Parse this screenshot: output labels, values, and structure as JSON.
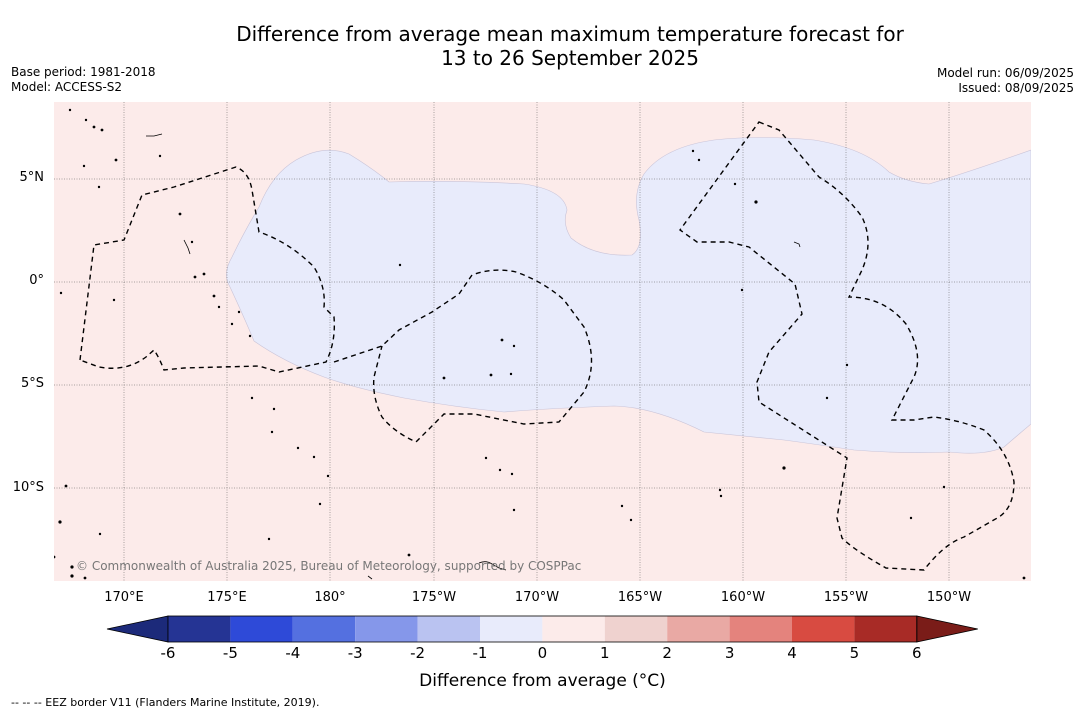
{
  "title_line1": "Difference from average mean maximum temperature forecast for",
  "title_line2": "13 to 26 September 2025",
  "meta_left": {
    "base_period": "Base period: 1981-2018",
    "model": "Model: ACCESS-S2"
  },
  "meta_right": {
    "model_run": "Model run: 06/09/2025",
    "issued": "Issued: 08/09/2025"
  },
  "lat_labels": [
    "5°N",
    "0°",
    "5°S",
    "10°S"
  ],
  "lon_labels": [
    "170°E",
    "175°E",
    "180°",
    "175°W",
    "170°W",
    "165°W",
    "160°W",
    "155°W",
    "150°W"
  ],
  "copyright": "© Commonwealth of Australia 2025, Bureau of Meteorology, supported by COSPPac",
  "colorbar": {
    "ticks": [
      "-6",
      "-5",
      "-4",
      "-3",
      "-2",
      "-1",
      "0",
      "1",
      "2",
      "3",
      "4",
      "5",
      "6"
    ],
    "colors": [
      "#253494",
      "#2e4ad8",
      "#5470e0",
      "#8597ea",
      "#bac3f1",
      "#e8ebfb",
      "#fcebea",
      "#efd2cf",
      "#e9a9a4",
      "#e4837d",
      "#d84b41",
      "#a82b26"
    ],
    "under_color": "#1c2a7a",
    "over_color": "#7a1c18",
    "label": "Difference from average (°C)"
  },
  "map_colors": {
    "warm_bg": "#fcebea",
    "cool_region": "#e8ebfb"
  },
  "footer_legend": "-- -- -- EEZ border V11 (Flanders Marine Institute, 2019)."
}
